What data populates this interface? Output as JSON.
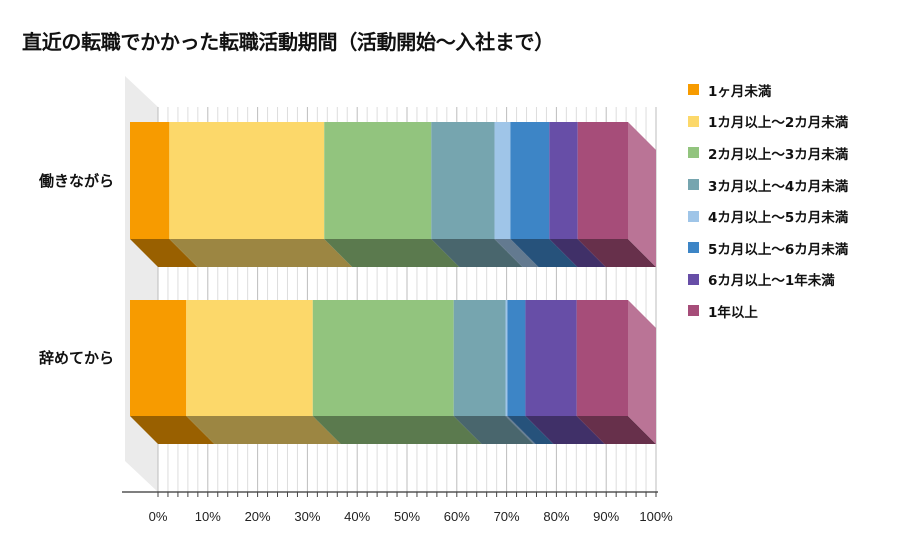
{
  "chart_data": {
    "type": "bar",
    "stacked": "percent",
    "orientation": "horizontal",
    "three_d": true,
    "title": "直近の転職でかかった転職活動期間（活動開始～入社まで）",
    "categories": [
      "働きながら",
      "辞めてから"
    ],
    "series": [
      {
        "name": "1ヶ月未満",
        "color": "#f79b00",
        "values": [
          7.9,
          11.3
        ]
      },
      {
        "name": "1カ月以上～2カ月未満",
        "color": "#fcd86a",
        "values": [
          31.1,
          25.4
        ]
      },
      {
        "name": "2カ月以上～3カ月未満",
        "color": "#92c47e",
        "values": [
          21.5,
          28.3
        ]
      },
      {
        "name": "3カ月以上～4カ月未満",
        "color": "#76a5af",
        "values": [
          12.7,
          10.4
        ]
      },
      {
        "name": "4カ月以上～5カ月未満",
        "color": "#9fc5e8",
        "values": [
          3.2,
          0.4
        ]
      },
      {
        "name": "5カ月以上～6カ月未満",
        "color": "#3d85c6",
        "values": [
          7.8,
          3.6
        ]
      },
      {
        "name": "6カ月以上～1年未満",
        "color": "#674ea7",
        "values": [
          5.7,
          10.3
        ]
      },
      {
        "name": "1年以上",
        "color": "#a64d79",
        "values": [
          10.1,
          10.3
        ]
      }
    ],
    "x_ticks": [
      "0%",
      "10%",
      "20%",
      "30%",
      "40%",
      "50%",
      "60%",
      "70%",
      "80%",
      "90%",
      "100%"
    ],
    "xlim": [
      0,
      100
    ],
    "legend": "right"
  }
}
